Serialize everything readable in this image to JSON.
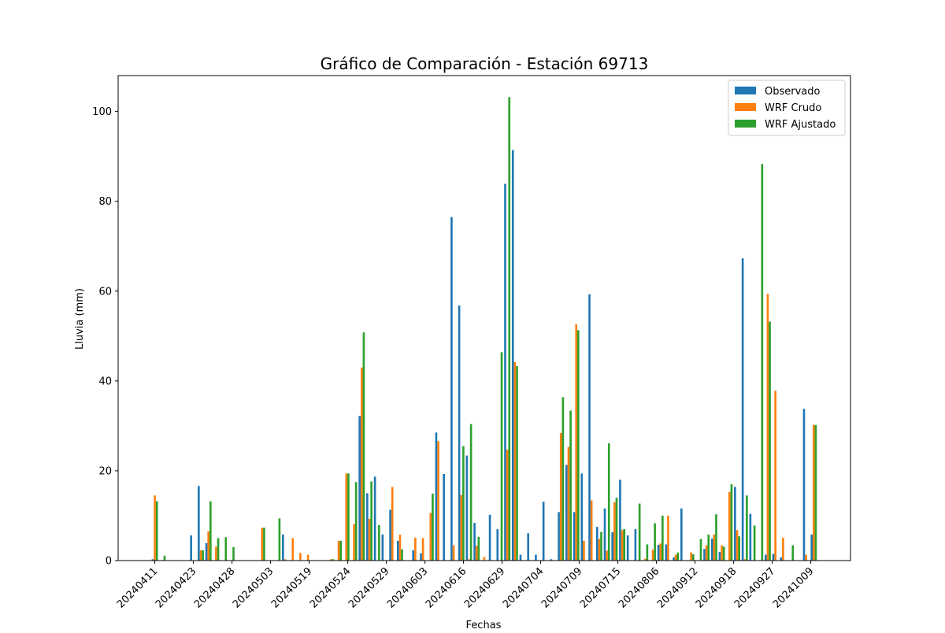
{
  "chart_data": {
    "type": "bar",
    "title": "Gráfico de Comparación - Estación 69713",
    "xlabel": "Fechas",
    "ylabel": "Lluvia (mm)",
    "ylim": [
      0,
      108
    ],
    "yticks": [
      0,
      20,
      40,
      60,
      80,
      100
    ],
    "grid": false,
    "legend_position": "top-right",
    "tick_labels": [
      "20240411",
      "20240423",
      "20240428",
      "20240503",
      "20240519",
      "20240524",
      "20240529",
      "20240603",
      "20240616",
      "20240629",
      "20240704",
      "20240709",
      "20240715",
      "20240806",
      "20240912",
      "20240918",
      "20240927",
      "20241009"
    ],
    "series": [
      {
        "name": "Observado",
        "color": "#1f77b4",
        "values": [
          0.3,
          0,
          0,
          0,
          0,
          5.6,
          16.6,
          3.9,
          0,
          0,
          0,
          0,
          0,
          0,
          0,
          0,
          0,
          5.8,
          0,
          0,
          0,
          0,
          0,
          0,
          0,
          0,
          0,
          32.2,
          15,
          18.7,
          5.8,
          11.3,
          4.4,
          0,
          2.3,
          1.6,
          0,
          28.5,
          19.3,
          76.5,
          56.8,
          23.4,
          8.4,
          0,
          10.2,
          7,
          83.9,
          91.4,
          1.3,
          6.1,
          1.3,
          13.1,
          0.3,
          10.8,
          21.3,
          10.8,
          19.4,
          59.3,
          7.5,
          11.6,
          6.3,
          18,
          5.6,
          7,
          0,
          0,
          3.5,
          3.6,
          0.7,
          11.6,
          0,
          0,
          2.6,
          4.9,
          1.9,
          0,
          16.4,
          67.3,
          10.4,
          0,
          1.3,
          1.5,
          0.7,
          0,
          0,
          33.8,
          5.8
        ]
      },
      {
        "name": "WRF Crudo",
        "color": "#ff7f0e",
        "values": [
          14.5,
          0,
          0,
          0,
          0,
          0,
          2.3,
          6.5,
          3.1,
          0,
          0,
          0,
          0,
          0,
          7.3,
          0,
          0,
          0.3,
          5,
          1.7,
          1.3,
          0,
          0,
          0.3,
          4.4,
          19.4,
          8.1,
          43,
          9.3,
          0,
          0,
          16.4,
          5.8,
          0,
          5.1,
          5,
          10.6,
          26.6,
          0,
          3.4,
          14.6,
          0.3,
          3.3,
          0.8,
          0,
          0,
          24.7,
          44.2,
          0,
          0,
          0,
          0,
          0,
          28.4,
          25.3,
          52.6,
          4.4,
          13.4,
          4.8,
          2.2,
          13,
          6.8,
          0,
          0,
          0.4,
          2.4,
          3.8,
          10,
          1.3,
          0,
          1.8,
          0,
          3.4,
          5.8,
          3.4,
          15.3,
          6.8,
          0.3,
          0,
          0,
          59.4,
          37.8,
          5.1,
          0,
          0,
          1.3,
          30.2
        ]
      },
      {
        "name": "WRF Ajustado",
        "color": "#2ca02c",
        "values": [
          13.2,
          1.1,
          0,
          0,
          0,
          0,
          2.3,
          13.2,
          5,
          5.2,
          3,
          0,
          0,
          0,
          7.3,
          0,
          9.4,
          0,
          0,
          0,
          0,
          0,
          0,
          0.3,
          4.4,
          19.4,
          17.5,
          50.8,
          17.6,
          7.9,
          0,
          0,
          2.5,
          0,
          0,
          0,
          14.9,
          0,
          0,
          0,
          25.5,
          30.4,
          5.3,
          0,
          0,
          46.4,
          103.2,
          43.3,
          0,
          0,
          0,
          0,
          0,
          36.4,
          33.4,
          51.3,
          0,
          0,
          6.4,
          26.1,
          14,
          7,
          0,
          12.7,
          3.6,
          8.3,
          10,
          0,
          1.8,
          0,
          1.4,
          4.8,
          5.8,
          10.3,
          3.1,
          17,
          5.4,
          14.5,
          7.8,
          88.3,
          53.2,
          0,
          0,
          3.4,
          0,
          0,
          30.2
        ]
      }
    ]
  }
}
